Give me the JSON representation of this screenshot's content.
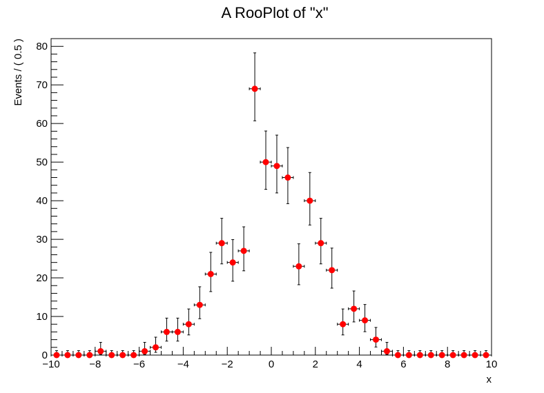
{
  "chart_data": {
    "type": "scatter",
    "title": "A RooPlot of \"x\"",
    "xlabel": "x",
    "ylabel": "Events / ( 0.5 )",
    "xlim": [
      -10,
      10
    ],
    "ylim": [
      0,
      82
    ],
    "x_ticks": [
      "−10",
      "−8",
      "−6",
      "−4",
      "−2",
      "0",
      "2",
      "4",
      "6",
      "8",
      "10"
    ],
    "y_ticks": [
      "0",
      "10",
      "20",
      "30",
      "40",
      "50",
      "60",
      "70",
      "80"
    ],
    "bin_width": 0.5,
    "marker_color": "#ff0000",
    "errorbar_color": "#000000",
    "grid": false,
    "series": [
      {
        "x": [
          -9.75,
          -9.25,
          -8.75,
          -8.25,
          -7.75,
          -7.25,
          -6.75,
          -6.25,
          -5.75,
          -5.25,
          -4.75,
          -4.25,
          -3.75,
          -3.25,
          -2.75,
          -2.25,
          -1.75,
          -1.25,
          -0.75,
          -0.25,
          0.25,
          0.75,
          1.25,
          1.75,
          2.25,
          2.75,
          3.25,
          3.75,
          4.25,
          4.75,
          5.25,
          5.75,
          6.25,
          6.75,
          7.25,
          7.75,
          8.25,
          8.75,
          9.25,
          9.75
        ],
        "y": [
          0,
          0,
          0,
          0,
          1,
          0,
          0,
          0,
          1,
          2,
          6,
          6,
          8,
          13,
          21,
          29,
          24,
          27,
          69,
          50,
          49,
          46,
          23,
          40,
          29,
          22,
          8,
          12,
          9,
          4,
          1,
          0,
          0,
          0,
          0,
          0,
          0,
          0,
          0,
          0
        ],
        "y_err_low": [
          0,
          0,
          0,
          0,
          0.83,
          0,
          0,
          0,
          0.83,
          1.29,
          2.38,
          2.38,
          2.78,
          3.58,
          4.55,
          5.37,
          4.86,
          5.17,
          8.3,
          7.06,
          6.99,
          6.77,
          4.77,
          6.3,
          5.37,
          4.66,
          2.78,
          3.41,
          2.94,
          1.91,
          0.83,
          0,
          0,
          0,
          0,
          0,
          0,
          0,
          0,
          0
        ],
        "y_err_high": [
          1.15,
          1.15,
          1.15,
          1.15,
          2.3,
          1.15,
          1.15,
          1.15,
          2.3,
          2.64,
          3.58,
          3.58,
          3.95,
          4.7,
          5.62,
          6.44,
          5.92,
          6.23,
          9.3,
          8.06,
          7.99,
          7.77,
          5.83,
          7.3,
          6.44,
          5.72,
          3.95,
          4.61,
          4.11,
          3.16,
          2.3,
          1.15,
          1.15,
          1.15,
          1.15,
          1.15,
          1.15,
          1.15,
          1.15,
          1.15
        ]
      }
    ]
  }
}
